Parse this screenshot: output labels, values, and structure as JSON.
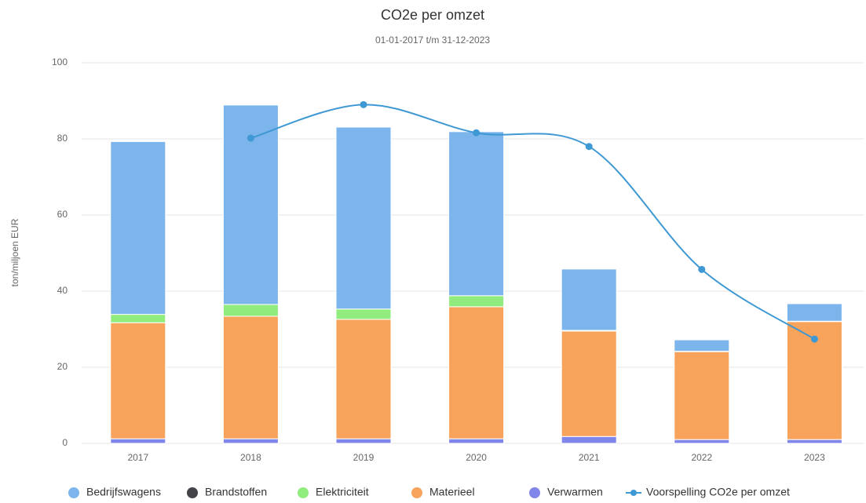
{
  "chart_data": {
    "type": "bar",
    "stacked": true,
    "title": "CO2e per omzet",
    "subtitle": "01-01-2017 t/m 31-12-2023",
    "y_label": "ton/miljoen EUR",
    "categories": [
      "2017",
      "2018",
      "2019",
      "2020",
      "2021",
      "2022",
      "2023"
    ],
    "ylim": [
      0,
      100
    ],
    "yticks": [
      0,
      20,
      40,
      60,
      80,
      100
    ],
    "grid": true,
    "series": [
      {
        "name": "Bedrijfswagens",
        "color": "#7cb5ec",
        "values": [
          45.4,
          52.4,
          47.8,
          43.1,
          16.1,
          3.0,
          4.6
        ]
      },
      {
        "name": "Brandstoffen",
        "color": "#434348",
        "values": [
          0,
          0,
          0,
          0,
          0,
          0,
          0
        ]
      },
      {
        "name": "Elektriciteit",
        "color": "#90ed7d",
        "values": [
          2.2,
          3.1,
          2.7,
          2.9,
          0.2,
          0.1,
          0.1
        ]
      },
      {
        "name": "Materieel",
        "color": "#f7a35c",
        "values": [
          30.5,
          32.2,
          31.4,
          34.7,
          27.7,
          23.1,
          31.0
        ]
      },
      {
        "name": "Verwarmen",
        "color": "#8085e9",
        "values": [
          1.2,
          1.2,
          1.2,
          1.2,
          1.8,
          1.0,
          1.0
        ]
      },
      {
        "name": "Voorspelling CO2e per omzet",
        "color": "#3e98d3",
        "type": "line",
        "values": [
          null,
          80.2,
          89.0,
          81.6,
          78.0,
          45.7,
          27.4
        ]
      }
    ]
  }
}
